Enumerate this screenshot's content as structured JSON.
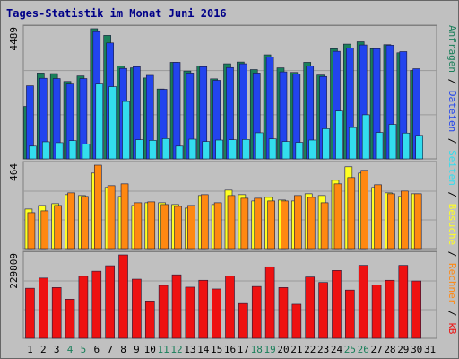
{
  "chart_data": {
    "type": "bar",
    "title": "Tages-Statistik im Monat Juni 2016",
    "categories": [
      "1",
      "2",
      "3",
      "4",
      "5",
      "6",
      "7",
      "8",
      "9",
      "10",
      "11",
      "12",
      "13",
      "14",
      "15",
      "16",
      "17",
      "18",
      "19",
      "20",
      "21",
      "22",
      "23",
      "24",
      "25",
      "26",
      "27",
      "28",
      "29",
      "30",
      "31"
    ],
    "weekend_days": [
      "4",
      "5",
      "11",
      "12",
      "18",
      "19",
      "25",
      "26"
    ],
    "panels": [
      {
        "id": "requests",
        "max_label": "4489",
        "ymax": 4489,
        "series": [
          {
            "name": "Anfragen",
            "color": "#1a7f5a",
            "values": [
              1810,
              2960,
              2940,
              2670,
              2860,
              4490,
              4260,
              3210,
              3140,
              2790,
              2410,
              3330,
              3030,
              3210,
              2760,
              3280,
              3340,
              3080,
              3590,
              3140,
              2980,
              3330,
              2890,
              3800,
              3960,
              4040,
              3800,
              3940,
              3660,
              3050,
              0
            ]
          },
          {
            "name": "Dateien",
            "color": "#2244ee",
            "values": [
              2520,
              2780,
              2770,
              2580,
              2770,
              4390,
              4000,
              3120,
              3180,
              2880,
              2400,
              3330,
              2960,
              3180,
              2710,
              3150,
              3280,
              2960,
              3520,
              3000,
              2920,
              3200,
              2840,
              3710,
              3830,
              3930,
              3800,
              3920,
              3700,
              3110,
              0
            ]
          },
          {
            "name": "Seiten",
            "color": "#33ddee",
            "values": [
              440,
              590,
              560,
              630,
              510,
              2580,
              2490,
              1980,
              660,
              640,
              700,
              440,
              680,
              600,
              650,
              660,
              670,
              900,
              690,
              600,
              570,
              650,
              1040,
              1650,
              1080,
              1520,
              910,
              1190,
              890,
              810,
              0
            ]
          }
        ],
        "right_labels": [
          "Anfragen",
          "Dateien",
          "Seiten"
        ]
      },
      {
        "id": "visits",
        "max_label": "464",
        "ymax": 464,
        "series": [
          {
            "name": "Besuche",
            "color": "#ffff22",
            "values": [
              220,
              240,
              250,
              300,
              295,
              420,
              340,
              290,
              240,
              255,
              255,
              245,
              225,
              295,
              245,
              325,
              300,
              265,
              285,
              270,
              265,
              305,
              295,
              380,
              455,
              420,
              340,
              310,
              290,
              305,
              0
            ]
          },
          {
            "name": "Rechner",
            "color": "#ff8811",
            "values": [
              200,
              210,
              240,
              310,
              290,
              464,
              350,
              360,
              255,
              260,
              245,
              235,
              240,
              300,
              255,
              295,
              280,
              280,
              265,
              265,
              295,
              285,
              255,
              360,
              395,
              435,
              355,
              305,
              320,
              305,
              0
            ]
          }
        ],
        "right_labels": [
          "Besuche",
          "Rechner"
        ]
      },
      {
        "id": "kb",
        "max_label": "229809",
        "ymax": 229809,
        "series": [
          {
            "name": "kB",
            "color": "#ee1111",
            "values": [
              138000,
              166000,
              140000,
              108000,
              171000,
              185000,
              200000,
              229809,
              163000,
              103000,
              146000,
              175000,
              141000,
              160000,
              136000,
              172000,
              96000,
              143000,
              197000,
              140000,
              94000,
              169000,
              154000,
              187000,
              133000,
              201000,
              147000,
              160000,
              201000,
              158000,
              0
            ]
          }
        ],
        "right_labels": [
          "kB"
        ]
      }
    ],
    "colors": {
      "title": "#000088",
      "weekday_label": "#000000",
      "weekend_label": "#1a7f5a",
      "plot_bg": "#c0c0c0",
      "grid": "#ffffff"
    }
  }
}
